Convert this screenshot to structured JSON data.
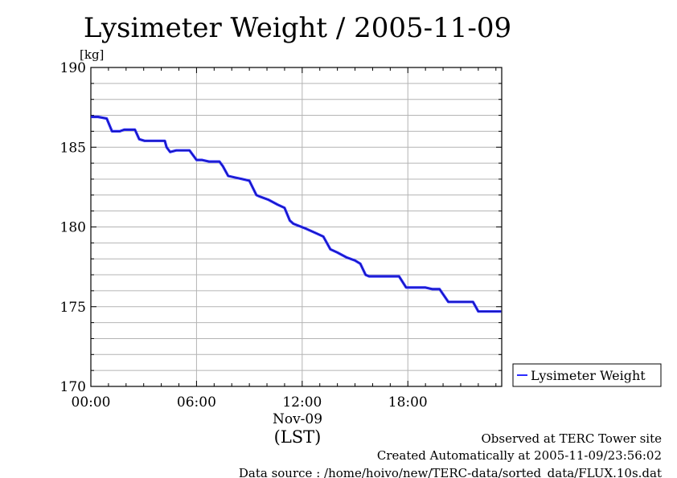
{
  "chart_data": {
    "type": "line",
    "title": "Lysimeter Weight / 2005-11-09",
    "ylabel": "[kg]",
    "xlabel": "(LST)",
    "date_label": "Nov-09",
    "x_unit": "hour",
    "xlim": [
      0,
      23.33
    ],
    "ylim": [
      170,
      190
    ],
    "y_ticks": [
      170,
      175,
      180,
      185,
      190
    ],
    "x_ticks": [
      {
        "x": 0,
        "label": "00:00"
      },
      {
        "x": 6,
        "label": "06:00"
      },
      {
        "x": 12,
        "label": "12:00"
      },
      {
        "x": 18,
        "label": "18:00"
      }
    ],
    "grid": true,
    "legend": "right",
    "series": [
      {
        "name": "Lysimeter Weight",
        "color": "#2b2bff",
        "x": [
          0,
          0.4,
          0.9,
          1.2,
          1.65,
          1.9,
          2.5,
          2.75,
          3.05,
          3.45,
          4.2,
          4.3,
          4.5,
          4.85,
          5.2,
          5.6,
          6.0,
          6.3,
          6.7,
          7.3,
          7.5,
          7.8,
          8.2,
          8.6,
          9.0,
          9.4,
          9.6,
          10.1,
          10.6,
          11.0,
          11.3,
          11.5,
          12.2,
          12.8,
          13.2,
          13.6,
          14.0,
          14.5,
          15.0,
          15.3,
          15.6,
          15.8,
          16.3,
          17.0,
          17.5,
          17.9,
          18.3,
          19.0,
          19.4,
          19.8,
          20.3,
          21.3,
          21.7,
          22.0,
          22.6,
          23.3
        ],
        "y": [
          186.9,
          186.9,
          186.8,
          186.0,
          186.0,
          186.1,
          186.1,
          185.5,
          185.4,
          185.4,
          185.4,
          185.0,
          184.7,
          184.8,
          184.8,
          184.8,
          184.2,
          184.2,
          184.1,
          184.1,
          183.8,
          183.2,
          183.1,
          183.0,
          182.9,
          182.0,
          181.9,
          181.7,
          181.4,
          181.2,
          180.4,
          180.2,
          179.9,
          179.6,
          179.4,
          178.6,
          178.4,
          178.1,
          177.9,
          177.7,
          177.0,
          176.9,
          176.9,
          176.9,
          176.9,
          176.2,
          176.2,
          176.2,
          176.1,
          176.1,
          175.3,
          175.3,
          175.3,
          174.7,
          174.7,
          174.7
        ]
      }
    ]
  },
  "footer": {
    "line1": "Observed at TERC Tower site",
    "line2": "Created Automatically at 2005-11-09/23:56:02",
    "line3": "Data source : /home/hoivo/new/TERC-data/sorted_data/FLUX.10s.dat"
  }
}
